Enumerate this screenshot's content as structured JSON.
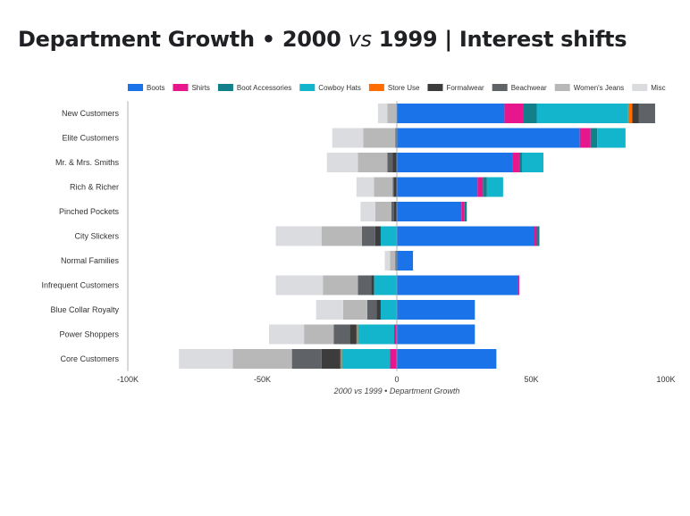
{
  "title": {
    "part1": "Department Growth •  2000 ",
    "vs": "vs",
    "part2": " 1999 |  Interest shifts"
  },
  "chart_data": {
    "type": "bar",
    "orientation": "horizontal",
    "stacked": "diverging",
    "xlabel": "2000 vs 1999 • Department Growth",
    "xlim": [
      -100000,
      100000
    ],
    "xticks": [
      -100000,
      -50000,
      0,
      50000,
      100000
    ],
    "xtick_labels": [
      "-100K",
      "-50K",
      "0",
      "50K",
      "100K"
    ],
    "legend_position": "top",
    "categories": [
      "New Customers",
      "Elite Customers",
      "Mr. & Mrs. Smiths",
      "Rich & Richer",
      "Pinched Pockets",
      "City Slickers",
      "Normal Families",
      "Infrequent Customers",
      "Blue Collar Royalty",
      "Power Shoppers",
      "Core Customers"
    ],
    "series": [
      {
        "name": "Boots",
        "color": "#1a73e8",
        "values": [
          40000,
          68000,
          43000,
          30000,
          24000,
          51000,
          6000,
          45000,
          29000,
          29000,
          37000
        ]
      },
      {
        "name": "Shirts",
        "color": "#e8168c",
        "values": [
          7000,
          4000,
          2500,
          2000,
          1000,
          1000,
          0,
          500,
          0,
          -1000,
          -2500
        ]
      },
      {
        "name": "Boot Accessories",
        "color": "#12808a",
        "values": [
          5000,
          2500,
          1000,
          1500,
          1000,
          1000,
          0,
          0,
          0,
          0,
          0
        ]
      },
      {
        "name": "Cowboy Hats",
        "color": "#12b5cb",
        "values": [
          34000,
          10500,
          8000,
          6000,
          0,
          -6000,
          0,
          -8500,
          -6000,
          -13500,
          -18000
        ]
      },
      {
        "name": "Store Use",
        "color": "#ff6d01",
        "values": [
          1500,
          0,
          0,
          0,
          0,
          0,
          0,
          0,
          0,
          -500,
          -500
        ]
      },
      {
        "name": "Formalwear",
        "color": "#3c3c3c",
        "values": [
          2500,
          0,
          -1500,
          -1000,
          -1000,
          -2000,
          0,
          -1000,
          -1500,
          -2500,
          -7000
        ]
      },
      {
        "name": "Beachwear",
        "color": "#5f6368",
        "values": [
          6000,
          -500,
          -2000,
          -500,
          -1000,
          -5000,
          -500,
          -5000,
          -3500,
          -6000,
          -11000
        ]
      },
      {
        "name": "Women's Jeans",
        "color": "#b8b8b8",
        "values": [
          -3500,
          -12000,
          -11000,
          -7000,
          -6000,
          -15000,
          -2000,
          -13000,
          -9000,
          -11000,
          -22000
        ]
      },
      {
        "name": "Misc",
        "color": "#dadce0",
        "values": [
          -3500,
          -11500,
          -11500,
          -6500,
          -5500,
          -17000,
          -2000,
          -17500,
          -10000,
          -13000,
          -20000
        ]
      }
    ]
  }
}
